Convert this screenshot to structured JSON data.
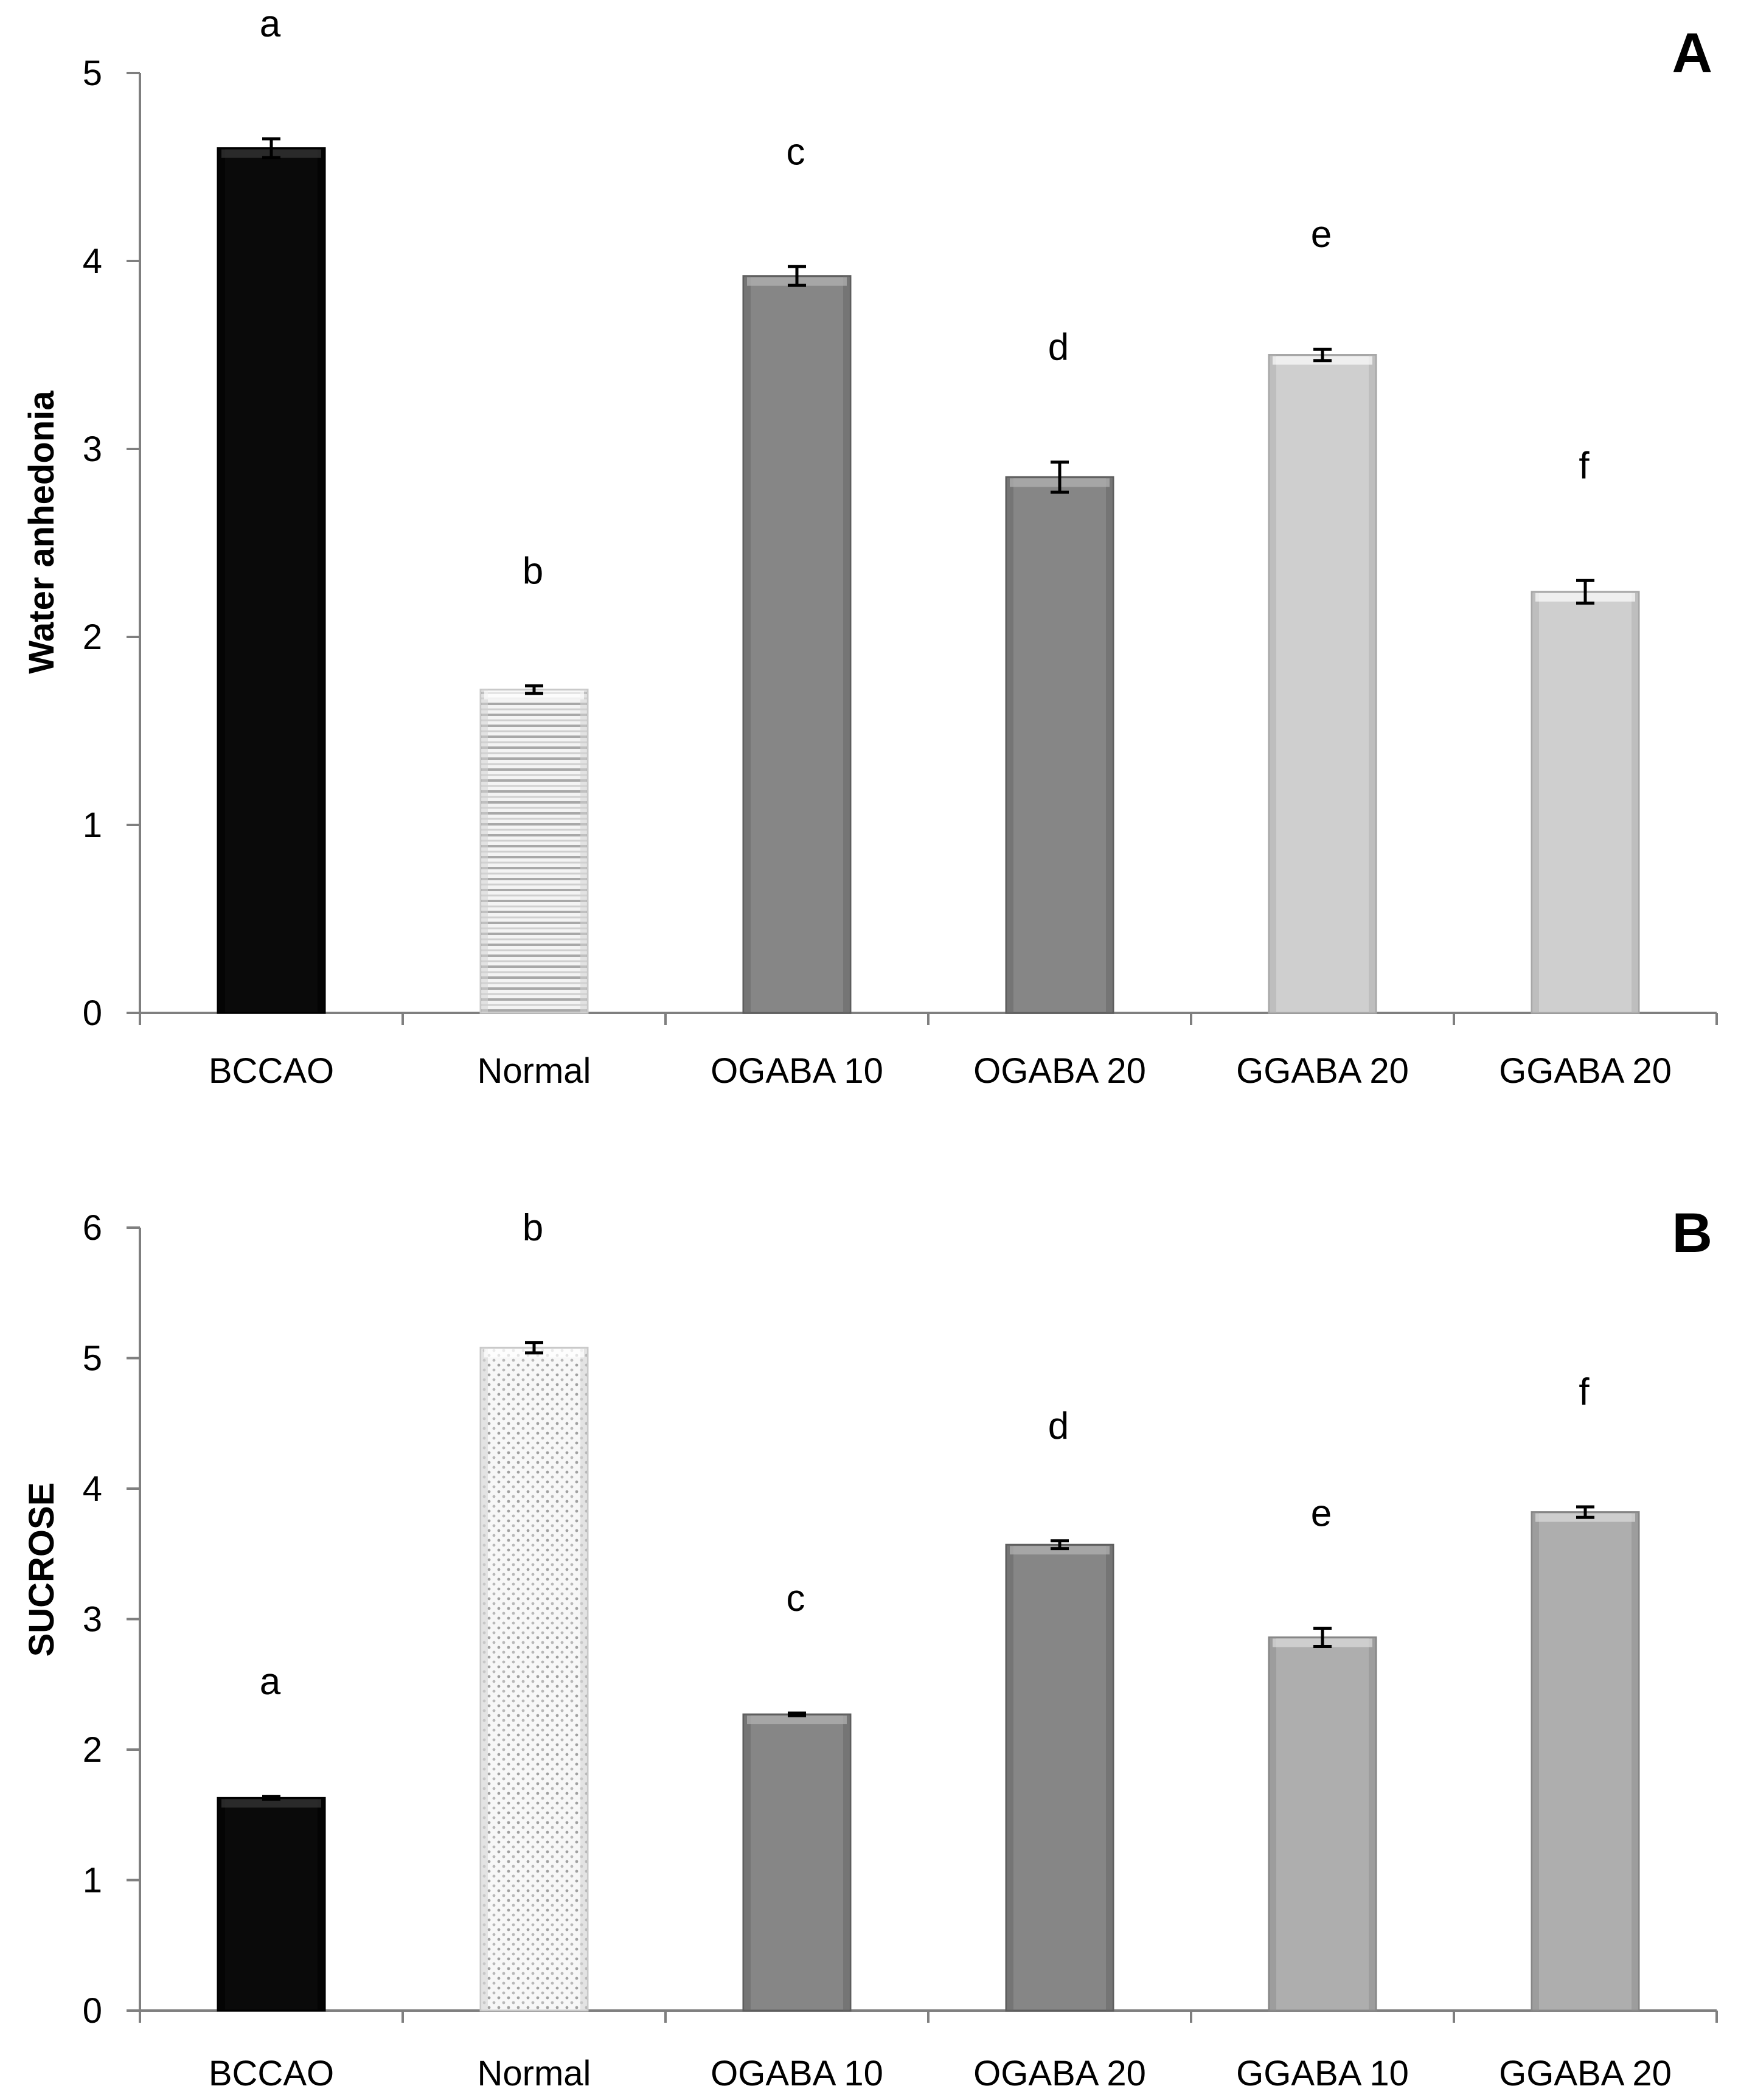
{
  "chart_data": [
    {
      "type": "bar",
      "panel": "A",
      "title": "",
      "xlabel": "",
      "ylabel": "Water anhedonia",
      "ylim": [
        0,
        5
      ],
      "yticks": [
        0,
        1,
        2,
        3,
        4,
        5
      ],
      "grid": false,
      "legend": "none",
      "categories": [
        "BCCAO",
        "Normal",
        "OGABA 10",
        "OGABA 20",
        "GGABA 20",
        "GGABA 20"
      ],
      "values": [
        4.6,
        1.72,
        3.92,
        2.85,
        3.5,
        2.24
      ],
      "errors": [
        0.05,
        0.02,
        0.05,
        0.08,
        0.03,
        0.06
      ],
      "significance_letters": [
        "a",
        "b",
        "c",
        "d",
        "e",
        "f"
      ],
      "bar_colors": [
        "#0a0a0a",
        "#f1f1f1",
        "#868686",
        "#868686",
        "#cfcfcf",
        "#cfcfcf"
      ],
      "bar_patterns": [
        "solid",
        "hatch",
        "solid",
        "solid",
        "solid",
        "solid"
      ]
    },
    {
      "type": "bar",
      "panel": "B",
      "title": "",
      "xlabel": "",
      "ylabel": "SUCROSE",
      "ylim": [
        0,
        6
      ],
      "yticks": [
        0,
        1,
        2,
        3,
        4,
        5,
        6
      ],
      "grid": false,
      "legend": "none",
      "categories": [
        "BCCAO",
        "Normal",
        "OGABA 10",
        "OGABA 20",
        "GGABA 10",
        "GGABA 20"
      ],
      "values": [
        1.63,
        5.08,
        2.27,
        3.57,
        2.86,
        3.82
      ],
      "errors": [
        0.01,
        0.04,
        0.01,
        0.03,
        0.07,
        0.04
      ],
      "significance_letters": [
        "a",
        "b",
        "c",
        "d",
        "e",
        "f"
      ],
      "bar_colors": [
        "#0a0a0a",
        "#f1f1f1",
        "#868686",
        "#868686",
        "#aeaeae",
        "#aeaeae"
      ],
      "bar_patterns": [
        "solid",
        "dots",
        "solid",
        "solid",
        "solid",
        "solid"
      ]
    }
  ]
}
